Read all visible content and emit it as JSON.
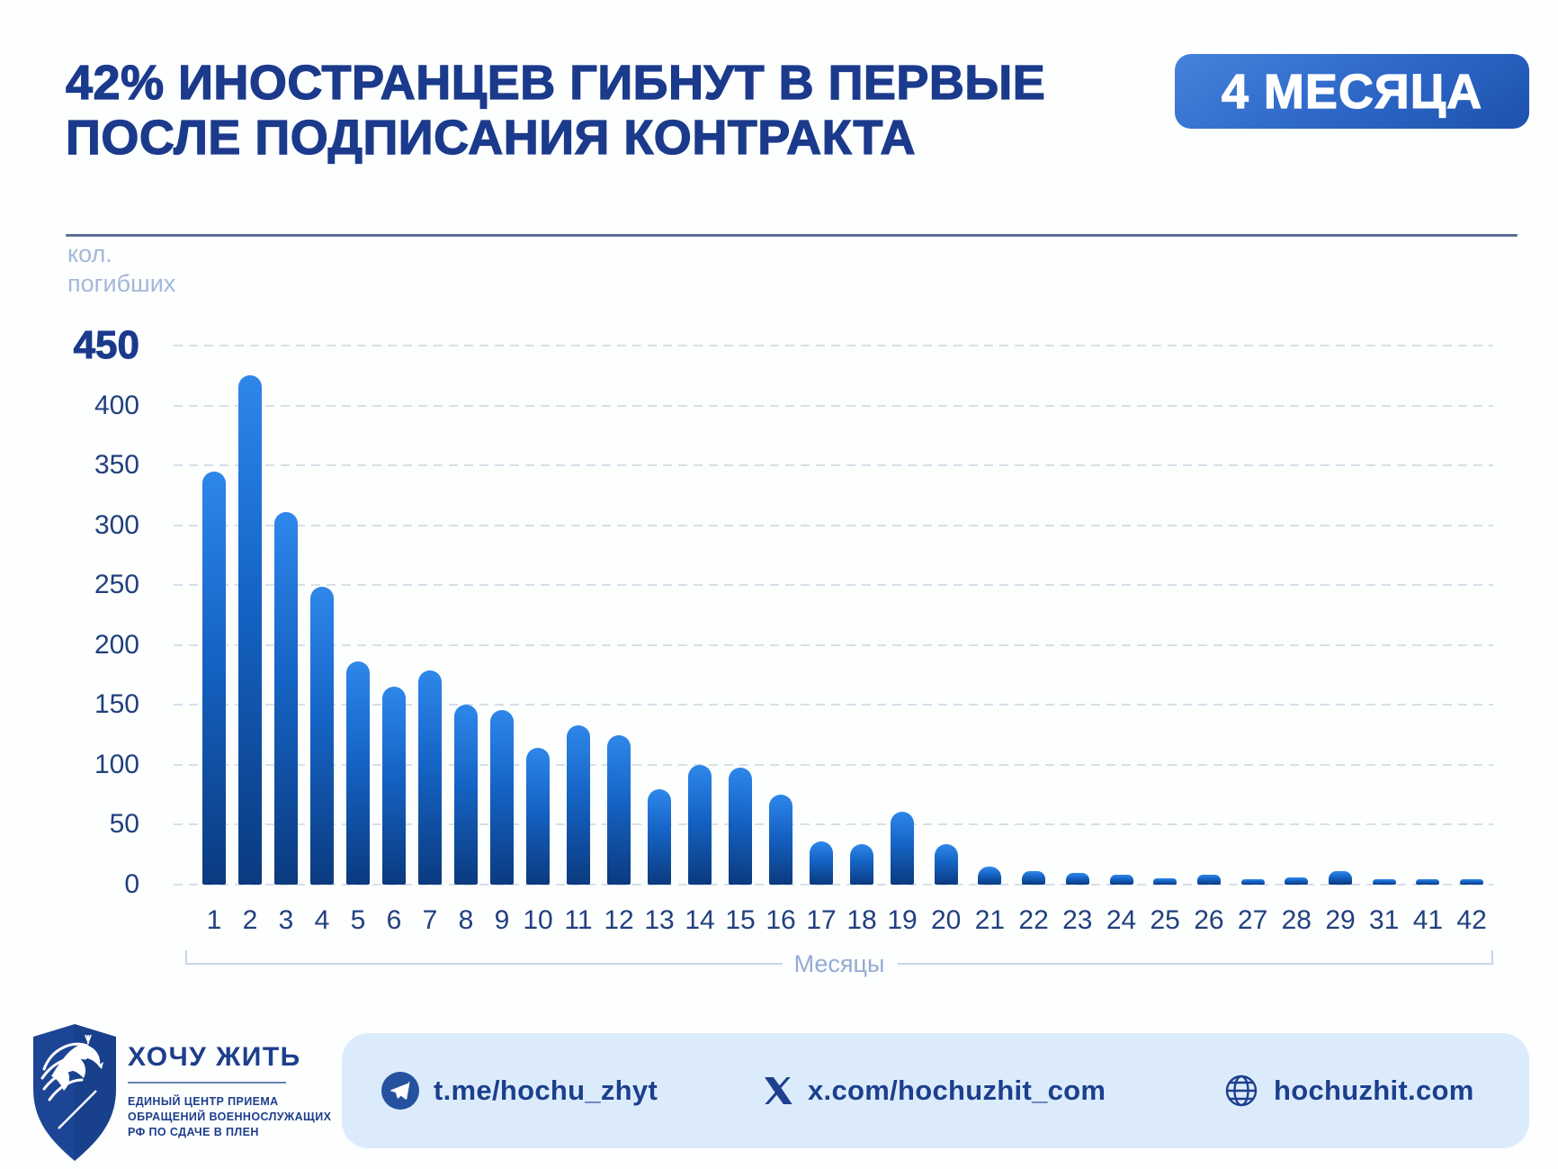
{
  "title": {
    "line1": "42% ИНОСТРАНЦЕВ ГИБНУТ В ПЕРВЫЕ",
    "line2": "ПОСЛЕ ПОДПИСАНИЯ КОНТРАКТА",
    "badge": "4 МЕСЯЦА"
  },
  "chart_data": {
    "type": "bar",
    "title": "42% иностранцев гибнут в первые 4 месяца после подписания контракта",
    "categories": [
      "1",
      "2",
      "3",
      "4",
      "5",
      "6",
      "7",
      "8",
      "9",
      "10",
      "11",
      "12",
      "13",
      "14",
      "15",
      "16",
      "17",
      "18",
      "19",
      "20",
      "21",
      "22",
      "23",
      "24",
      "25",
      "26",
      "27",
      "28",
      "29",
      "31",
      "41",
      "42"
    ],
    "values": [
      345,
      425,
      311,
      249,
      186,
      165,
      179,
      150,
      146,
      114,
      133,
      125,
      80,
      100,
      98,
      75,
      36,
      34,
      61,
      34,
      15,
      11,
      10,
      8,
      5,
      8,
      4,
      6,
      11,
      4,
      4,
      4
    ],
    "xlabel": "Месяцы",
    "ylabel": "кол. погибших",
    "ylim": [
      0,
      450
    ],
    "yticks": [
      450,
      400,
      350,
      300,
      250,
      200,
      150,
      100,
      50,
      0
    ],
    "grid": "horizontal dashed",
    "legend": "none",
    "bar_color_top": "#2e87ea",
    "bar_color_bottom": "#0b3a7f"
  },
  "yaxis_unit": [
    "кол.",
    "погибших"
  ],
  "footer": {
    "logo": {
      "name": "ХОЧУ ЖИТЬ",
      "tagline": [
        "ЕДИНЫЙ ЦЕНТР ПРИЕМА",
        "ОБРАЩЕНИЙ ВОЕННОСЛУЖАЩИХ",
        "РФ ПО СДАЧЕ В ПЛЕН"
      ]
    },
    "links": [
      {
        "icon": "telegram-icon",
        "text": "t.me/hochu_zhyt"
      },
      {
        "icon": "x-icon",
        "text": "x.com/hochuzhit_com"
      },
      {
        "icon": "globe-icon",
        "text": "hochuzhit.com"
      }
    ]
  },
  "colors": {
    "title_navy": "#1b3a8c",
    "badge_blue": "#2c66c6",
    "axis_text": "#22407f",
    "muted_blue": "#a3b8da",
    "grid": "#d7dfe9",
    "footer_pill": "#dcebfb",
    "footer_text": "#1c3f8e"
  }
}
